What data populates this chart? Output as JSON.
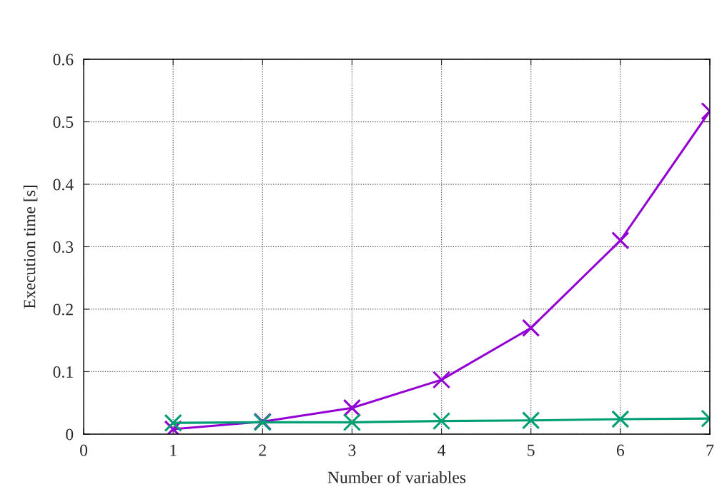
{
  "chart_data": {
    "type": "line",
    "xlabel": "Number of variables",
    "ylabel": "Execution time [s]",
    "x": [
      1,
      2,
      3,
      4,
      5,
      6,
      7
    ],
    "series": [
      {
        "color": "#9400d3",
        "marker": "cross",
        "values": [
          0.008,
          0.02,
          0.042,
          0.087,
          0.17,
          0.31,
          0.517
        ]
      },
      {
        "color": "#009e73",
        "marker": "cross",
        "values": [
          0.018,
          0.019,
          0.019,
          0.021,
          0.022,
          0.024,
          0.025
        ]
      }
    ],
    "xlim": [
      0,
      7
    ],
    "xticks": [
      0,
      1,
      2,
      3,
      4,
      5,
      6,
      7
    ],
    "ylim": [
      0,
      0.6
    ],
    "yticks": [
      0,
      0.1,
      0.2,
      0.3,
      0.4,
      0.5,
      0.6
    ],
    "grid": true,
    "line_style": "solid"
  }
}
